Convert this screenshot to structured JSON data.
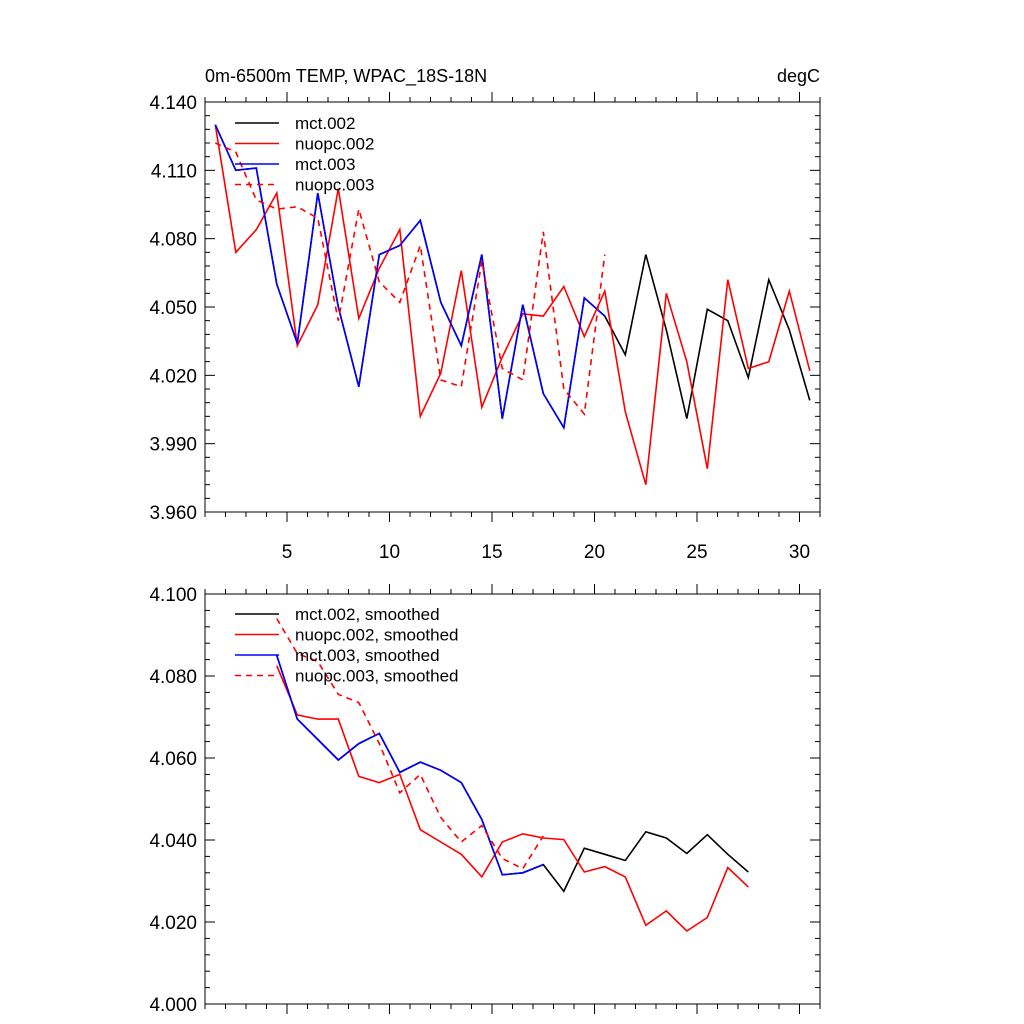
{
  "chart_data": [
    {
      "type": "line",
      "title_left": "0m-6500m TEMP, WPAC_18S-18N",
      "title_right": "degC",
      "xlabel": "",
      "ylabel": "",
      "xlim": [
        1,
        31
      ],
      "ylim": [
        3.96,
        4.14
      ],
      "xticks": [
        5,
        10,
        15,
        20,
        25,
        30
      ],
      "xtick_labels": [
        "5",
        "10",
        "15",
        "20",
        "25",
        "30"
      ],
      "yticks": [
        3.96,
        3.99,
        4.02,
        4.05,
        4.08,
        4.11,
        4.14
      ],
      "ytick_labels": [
        "3.960",
        "3.990",
        "4.020",
        "4.050",
        "4.080",
        "4.110",
        "4.140"
      ],
      "legend": "top-left",
      "series": [
        {
          "name": "mct.002",
          "color": "#000000",
          "dash": "solid",
          "x": [
            1.5,
            2.5,
            3.5,
            4.5,
            5.5,
            6.5,
            7.5,
            8.5,
            9.5,
            10.5,
            11.5,
            12.5,
            13.5,
            14.5,
            15.5,
            16.5,
            17.5,
            18.5,
            19.5,
            20.5,
            21.5,
            22.5,
            23.5,
            24.5,
            25.5,
            26.5,
            27.5,
            28.5,
            29.5,
            30.5
          ],
          "values": [
            4.13,
            4.11,
            4.111,
            4.06,
            4.034,
            4.1,
            4.05,
            4.015,
            4.073,
            4.077,
            4.088,
            4.052,
            4.033,
            4.073,
            4.001,
            4.051,
            4.012,
            3.997,
            4.054,
            4.046,
            4.029,
            4.073,
            4.04,
            4.001,
            4.049,
            4.044,
            4.019,
            4.062,
            4.04,
            4.009
          ]
        },
        {
          "name": "nuopc.002",
          "color": "#ff0000",
          "dash": "solid",
          "x": [
            1.5,
            2.5,
            3.5,
            4.5,
            5.5,
            6.5,
            7.5,
            8.5,
            9.5,
            10.5,
            11.5,
            12.5,
            13.5,
            14.5,
            15.5,
            16.5,
            17.5,
            18.5,
            19.5,
            20.5,
            21.5,
            22.5,
            23.5,
            24.5,
            25.5,
            26.5,
            27.5,
            28.5,
            29.5,
            30.5
          ],
          "values": [
            4.13,
            4.074,
            4.084,
            4.1,
            4.033,
            4.051,
            4.102,
            4.045,
            4.067,
            4.084,
            4.002,
            4.021,
            4.066,
            4.006,
            4.028,
            4.047,
            4.046,
            4.059,
            4.037,
            4.057,
            4.004,
            3.972,
            4.056,
            4.026,
            3.979,
            4.062,
            4.023,
            4.026,
            4.057,
            4.022
          ]
        },
        {
          "name": "mct.003",
          "color": "#0000ff",
          "dash": "solid",
          "x": [
            1.5,
            2.5,
            3.5,
            4.5,
            5.5,
            6.5,
            7.5,
            8.5,
            9.5,
            10.5,
            11.5,
            12.5,
            13.5,
            14.5,
            15.5,
            16.5,
            17.5,
            18.5,
            19.5,
            20.5
          ],
          "values": [
            4.13,
            4.11,
            4.111,
            4.06,
            4.034,
            4.1,
            4.05,
            4.015,
            4.073,
            4.077,
            4.088,
            4.052,
            4.033,
            4.073,
            4.001,
            4.051,
            4.012,
            3.997,
            4.054,
            4.046
          ]
        },
        {
          "name": "nuopc.003",
          "color": "#ff0000",
          "dash": "dashed",
          "x": [
            1.5,
            2.5,
            3.5,
            4.5,
            5.5,
            6.5,
            7.5,
            8.5,
            9.5,
            10.5,
            11.5,
            12.5,
            13.5,
            14.5,
            15.5,
            16.5,
            17.5,
            18.5,
            19.5,
            20.5
          ],
          "values": [
            4.122,
            4.118,
            4.097,
            4.093,
            4.094,
            4.089,
            4.044,
            4.093,
            4.061,
            4.052,
            4.077,
            4.018,
            4.015,
            4.07,
            4.023,
            4.018,
            4.083,
            4.014,
            4.003,
            4.073
          ]
        }
      ]
    },
    {
      "type": "line",
      "title_left": "",
      "title_right": "",
      "xlabel": "",
      "ylabel": "",
      "xlim": [
        1,
        31
      ],
      "ylim": [
        4.0,
        4.1
      ],
      "xticks": [
        5,
        10,
        15,
        20,
        25,
        30
      ],
      "xtick_labels": [],
      "yticks": [
        4.0,
        4.02,
        4.04,
        4.06,
        4.08,
        4.1
      ],
      "ytick_labels": [
        "4.000",
        "4.020",
        "4.040",
        "4.060",
        "4.080",
        "4.100"
      ],
      "legend": "top-left",
      "series": [
        {
          "name": "mct.002, smoothed",
          "color": "#000000",
          "dash": "solid",
          "x": [
            4.5,
            5.5,
            6.5,
            7.5,
            8.5,
            9.5,
            10.5,
            11.5,
            12.5,
            13.5,
            14.5,
            15.5,
            16.5,
            17.5,
            18.5,
            19.5,
            20.5,
            21.5,
            22.5,
            23.5,
            24.5,
            25.5,
            26.5,
            27.5
          ],
          "values": [
            4.085,
            4.0695,
            4.0645,
            4.0595,
            4.0635,
            4.066,
            4.0565,
            4.059,
            4.057,
            4.054,
            4.045,
            4.0315,
            4.032,
            4.034,
            4.0275,
            4.038,
            4.0365,
            4.035,
            4.042,
            4.0405,
            4.0367,
            4.0413,
            4.0365,
            4.0322
          ]
        },
        {
          "name": "nuopc.002, smoothed",
          "color": "#ff0000",
          "dash": "solid",
          "x": [
            4.5,
            5.5,
            6.5,
            7.5,
            8.5,
            9.5,
            10.5,
            11.5,
            12.5,
            13.5,
            14.5,
            15.5,
            16.5,
            17.5,
            18.5,
            19.5,
            20.5,
            21.5,
            22.5,
            23.5,
            24.5,
            25.5,
            26.5,
            27.5
          ],
          "values": [
            4.0825,
            4.0705,
            4.0695,
            4.0695,
            4.0555,
            4.054,
            4.056,
            4.0425,
            4.0395,
            4.0365,
            4.031,
            4.0395,
            4.0415,
            4.0405,
            4.0401,
            4.0322,
            4.0335,
            4.031,
            4.0192,
            4.0227,
            4.0178,
            4.0211,
            4.0333,
            4.0285
          ]
        },
        {
          "name": "mct.003, smoothed",
          "color": "#0000ff",
          "dash": "solid",
          "x": [
            4.5,
            5.5,
            6.5,
            7.5,
            8.5,
            9.5,
            10.5,
            11.5,
            12.5,
            13.5,
            14.5,
            15.5,
            16.5,
            17.5
          ],
          "values": [
            4.085,
            4.0695,
            4.0645,
            4.0595,
            4.0635,
            4.066,
            4.0565,
            4.059,
            4.057,
            4.054,
            4.045,
            4.0315,
            4.032,
            4.034
          ]
        },
        {
          "name": "nuopc.003, smoothed",
          "color": "#ff0000",
          "dash": "dashed",
          "x": [
            4.5,
            5.5,
            6.5,
            7.5,
            8.5,
            9.5,
            10.5,
            11.5,
            12.5,
            13.5,
            14.5,
            15.5,
            16.5,
            17.5
          ],
          "values": [
            4.094,
            4.0855,
            4.0835,
            4.0755,
            4.0735,
            4.0635,
            4.0515,
            4.056,
            4.0455,
            4.0395,
            4.0435,
            4.0355,
            4.033,
            4.041
          ]
        }
      ]
    }
  ]
}
